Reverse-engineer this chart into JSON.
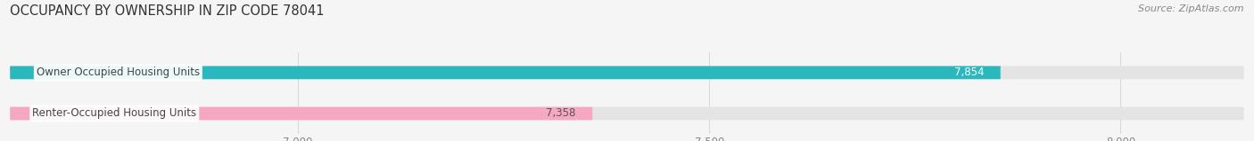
{
  "title": "OCCUPANCY BY OWNERSHIP IN ZIP CODE 78041",
  "source": "Source: ZipAtlas.com",
  "categories": [
    "Owner Occupied Housing Units",
    "Renter-Occupied Housing Units"
  ],
  "values": [
    7854,
    7358
  ],
  "bar_colors": [
    "#2ab8be",
    "#f5a8c0"
  ],
  "value_colors": [
    "#ffffff",
    "#555555"
  ],
  "xlim_min": 6650,
  "xlim_max": 8150,
  "xticks": [
    7000,
    7500,
    8000
  ],
  "bar_height": 0.32,
  "bar_gap": 0.18,
  "title_fontsize": 10.5,
  "source_fontsize": 8,
  "label_fontsize": 8.5,
  "value_fontsize": 8.5,
  "tick_fontsize": 8.5,
  "bg_color": "#f5f5f5",
  "bar_bg_color": "#e4e4e4",
  "grid_color": "#cccccc",
  "label_text_color": "#444444",
  "tick_color": "#888888"
}
